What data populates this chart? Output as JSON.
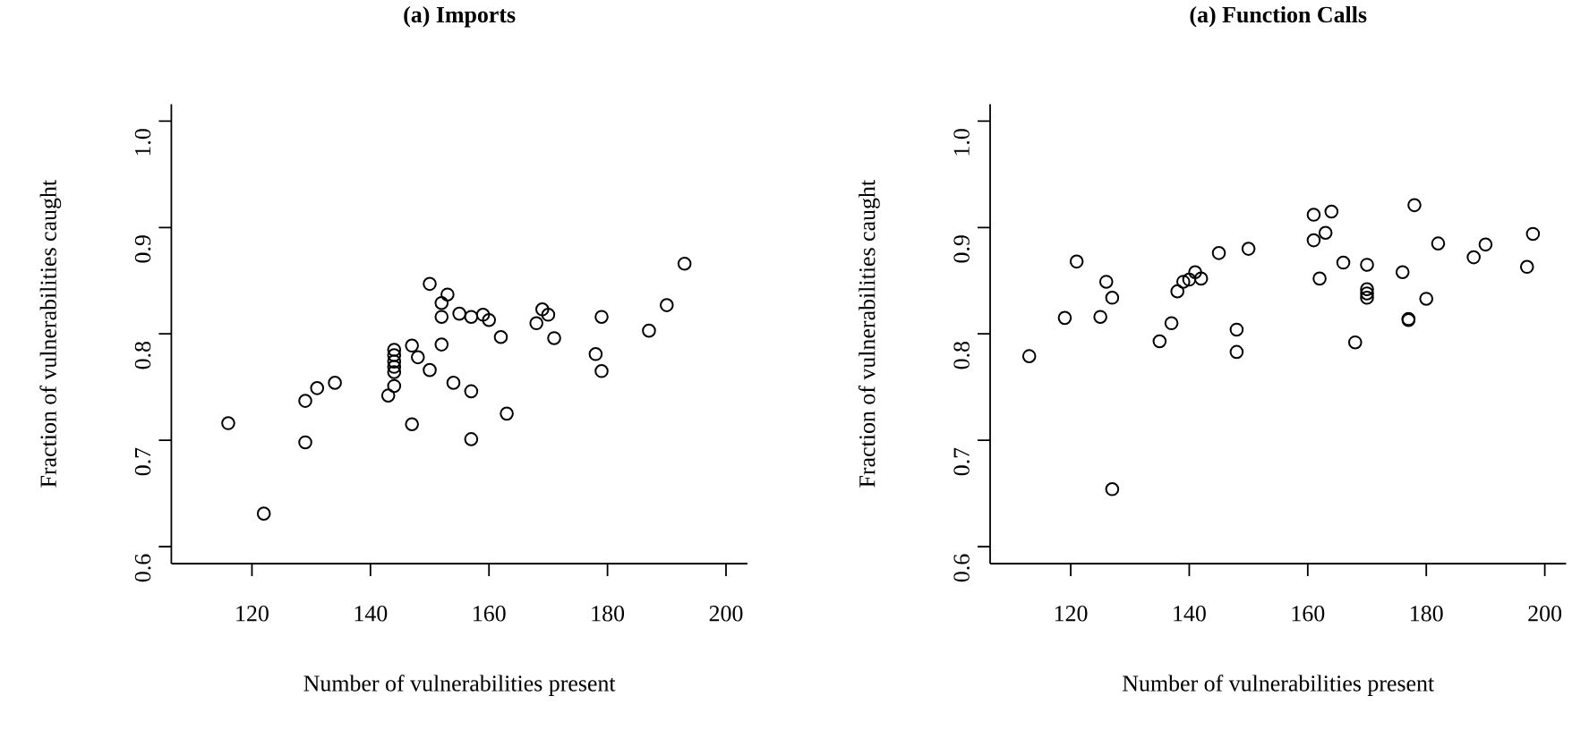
{
  "chart_data": [
    {
      "type": "scatter",
      "title": "(a) Imports",
      "xlabel": "Number of vulnerabilities present",
      "ylabel": "Fraction of vulnerabilities caught",
      "marker": "circle",
      "color": "#000000",
      "xlim": [
        106.4,
        203.6
      ],
      "ylim": [
        0.584,
        1.016
      ],
      "xticks": [
        120,
        140,
        160,
        180,
        200
      ],
      "yticks": [
        0.6,
        0.7,
        0.8,
        0.9,
        {
          "value": 1.0,
          "label": "1.0"
        }
      ],
      "x": [
        116,
        122,
        129,
        129,
        131,
        134,
        143,
        144,
        144,
        144,
        144,
        144,
        144,
        147,
        147,
        148,
        150,
        150,
        152,
        153,
        152,
        152,
        154,
        155,
        157,
        157,
        157,
        159,
        160,
        162,
        163,
        168,
        169,
        170,
        171,
        178,
        179,
        179,
        187,
        190,
        193
      ],
      "values": [
        0.716,
        0.631,
        0.698,
        0.737,
        0.749,
        0.754,
        0.742,
        0.751,
        0.785,
        0.78,
        0.774,
        0.769,
        0.764,
        0.789,
        0.715,
        0.778,
        0.766,
        0.847,
        0.829,
        0.837,
        0.816,
        0.79,
        0.754,
        0.819,
        0.816,
        0.746,
        0.701,
        0.818,
        0.813,
        0.797,
        0.725,
        0.81,
        0.823,
        0.818,
        0.796,
        0.781,
        0.816,
        0.765,
        0.803,
        0.827,
        0.866
      ]
    },
    {
      "type": "scatter",
      "title": "(a) Function Calls",
      "xlabel": "Number of vulnerabilities present",
      "ylabel": "Fraction of vulnerabilities caught",
      "marker": "circle",
      "color": "#000000",
      "xlim": [
        106.4,
        203.6
      ],
      "ylim": [
        0.584,
        1.016
      ],
      "xticks": [
        120,
        140,
        160,
        180,
        200
      ],
      "yticks": [
        0.6,
        0.7,
        0.8,
        0.9,
        {
          "value": 1.0,
          "label": "1.0"
        }
      ],
      "x": [
        113,
        119,
        121,
        125,
        126,
        127,
        127,
        135,
        137,
        138,
        139,
        140,
        141,
        142,
        145,
        148,
        148,
        150,
        161,
        161,
        162,
        163,
        164,
        166,
        168,
        170,
        170,
        170,
        170,
        176,
        177,
        177,
        178,
        180,
        182,
        188,
        190,
        197,
        198
      ],
      "values": [
        0.779,
        0.815,
        0.868,
        0.816,
        0.849,
        0.834,
        0.654,
        0.793,
        0.81,
        0.84,
        0.849,
        0.851,
        0.858,
        0.852,
        0.876,
        0.804,
        0.783,
        0.88,
        0.912,
        0.888,
        0.852,
        0.895,
        0.915,
        0.867,
        0.792,
        0.865,
        0.842,
        0.838,
        0.834,
        0.858,
        0.814,
        0.813,
        0.921,
        0.833,
        0.885,
        0.872,
        0.884,
        0.863,
        0.894
      ]
    }
  ]
}
